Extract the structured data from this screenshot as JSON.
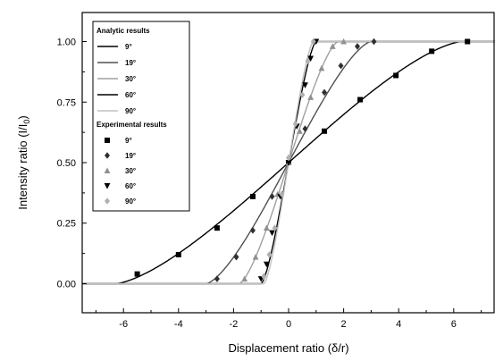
{
  "chart_data": {
    "type": "line",
    "xlabel": "Displacement ratio (δ/r)",
    "ylabel_main": "Intensity ratio (I/I",
    "ylabel_sub": "0",
    "ylabel_end": ")",
    "xlim": [
      -7.5,
      7.5
    ],
    "ylim": [
      -0.12,
      1.12
    ],
    "xticks": [
      -6,
      -4,
      -2,
      0,
      2,
      4,
      6
    ],
    "xtick_labels": [
      "-6",
      "-4",
      "-2",
      "0",
      "2",
      "4",
      "6"
    ],
    "yticks": [
      0,
      0.25,
      0.5,
      0.75,
      1.0
    ],
    "ytick_labels": [
      "0.00",
      "0.25",
      "0.50",
      "0.75",
      "1.00"
    ],
    "grid": false,
    "legend_position": "top-left",
    "legend_analytic_heading": "Analytic results",
    "legend_experimental_heading": "Experimental results",
    "series": [
      {
        "name": "9°",
        "analytic_color": "#000000",
        "marker": "square",
        "marker_color": "#000000",
        "analytic_limit": 6.3,
        "experimental": {
          "x": [
            -5.5,
            -4.0,
            -2.6,
            -1.3,
            0.0,
            1.3,
            2.6,
            3.9,
            5.2,
            6.5
          ],
          "y": [
            0.04,
            0.12,
            0.23,
            0.36,
            0.5,
            0.63,
            0.76,
            0.86,
            0.96,
            1.0
          ]
        }
      },
      {
        "name": "19°",
        "analytic_color": "#505050",
        "marker": "diamond",
        "marker_color": "#303030",
        "analytic_limit": 3.0,
        "experimental": {
          "x": [
            -2.6,
            -1.9,
            -1.3,
            -0.6,
            0.0,
            0.6,
            1.3,
            1.9,
            2.5,
            3.1
          ],
          "y": [
            0.02,
            0.11,
            0.22,
            0.36,
            0.5,
            0.64,
            0.79,
            0.9,
            0.98,
            1.0
          ]
        }
      },
      {
        "name": "30°",
        "analytic_color": "#a0a0a0",
        "marker": "triangle-up",
        "marker_color": "#909090",
        "analytic_limit": 1.8,
        "experimental": {
          "x": [
            -1.6,
            -1.2,
            -0.8,
            -0.4,
            0.0,
            0.4,
            0.8,
            1.2,
            1.6,
            2.0
          ],
          "y": [
            0.02,
            0.11,
            0.23,
            0.37,
            0.5,
            0.63,
            0.77,
            0.89,
            0.98,
            1.0
          ]
        }
      },
      {
        "name": "60°",
        "analytic_color": "#000000",
        "marker": "triangle-down",
        "marker_color": "#000000",
        "analytic_limit": 1.0,
        "experimental": {
          "x": [
            -1.0,
            -0.8,
            -0.6,
            -0.3,
            0.0,
            0.3,
            0.6,
            0.8,
            1.0
          ],
          "y": [
            0.02,
            0.08,
            0.21,
            0.36,
            0.5,
            0.65,
            0.82,
            0.93,
            1.0
          ]
        }
      },
      {
        "name": "90°",
        "analytic_color": "#c0c0c0",
        "marker": "diamond",
        "marker_color": "#b0b0b0",
        "analytic_limit": 0.9,
        "experimental": {
          "x": [
            -0.9,
            -0.7,
            -0.5,
            -0.25,
            0.0,
            0.25,
            0.5,
            0.7,
            0.9
          ],
          "y": [
            0.03,
            0.12,
            0.23,
            0.37,
            0.52,
            0.66,
            0.78,
            0.92,
            1.0
          ]
        }
      }
    ]
  }
}
